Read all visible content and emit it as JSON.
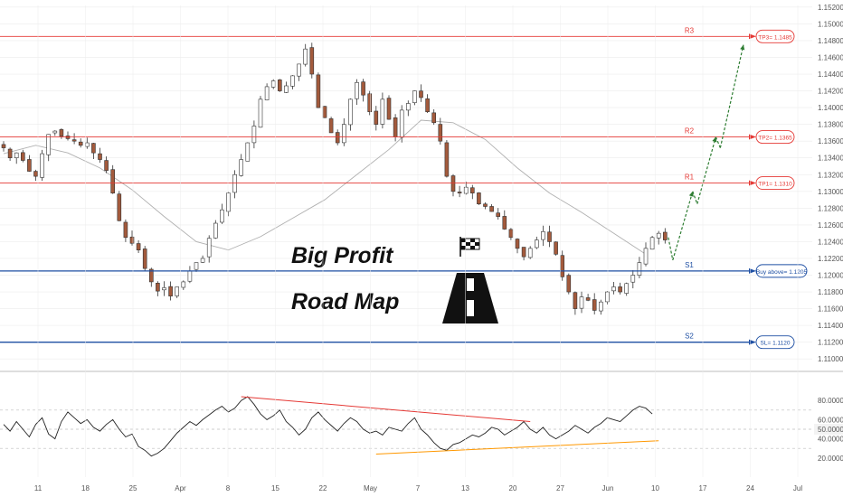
{
  "chart_data": [
    {
      "type": "candlestick",
      "instrument_hint": "price",
      "y_axis_ticks": [
        "1.15200",
        "1.15000",
        "1.14800",
        "1.14600",
        "1.14400",
        "1.14200",
        "1.14000",
        "1.13800",
        "1.13600",
        "1.13400",
        "1.13200",
        "1.13000",
        "1.12800",
        "1.12600",
        "1.12400",
        "1.12200",
        "1.12000",
        "1.11800",
        "1.11600",
        "1.11400",
        "1.11200",
        "1.11000"
      ],
      "ylim": [
        1.1097,
        1.1522
      ],
      "x_axis_ticks": [
        "11",
        "18",
        "25",
        "Apr",
        "8",
        "15",
        "22",
        "May",
        "7",
        "13",
        "20",
        "27",
        "Jun",
        "10",
        "17",
        "24",
        "Jul"
      ],
      "close_path": [
        [
          0,
          1.1352
        ],
        [
          1,
          1.134
        ],
        [
          2,
          1.1346
        ],
        [
          3,
          1.1337
        ],
        [
          4,
          1.1324
        ],
        [
          5,
          1.1318
        ],
        [
          6,
          1.1345
        ],
        [
          7,
          1.1368
        ],
        [
          8,
          1.1372
        ],
        [
          9,
          1.1366
        ],
        [
          10,
          1.1363
        ],
        [
          11,
          1.136
        ],
        [
          12,
          1.1355
        ],
        [
          13,
          1.1358
        ],
        [
          14,
          1.1346
        ],
        [
          15,
          1.1338
        ],
        [
          16,
          1.1325
        ],
        [
          17,
          1.1298
        ],
        [
          18,
          1.1265
        ],
        [
          19,
          1.1245
        ],
        [
          20,
          1.1238
        ],
        [
          21,
          1.123
        ],
        [
          22,
          1.1208
        ],
        [
          23,
          1.1192
        ],
        [
          24,
          1.1181
        ],
        [
          25,
          1.1185
        ],
        [
          26,
          1.1175
        ],
        [
          27,
          1.1186
        ],
        [
          28,
          1.1192
        ],
        [
          29,
          1.1205
        ],
        [
          30,
          1.1215
        ],
        [
          31,
          1.122
        ],
        [
          32,
          1.1244
        ],
        [
          33,
          1.1262
        ],
        [
          34,
          1.1278
        ],
        [
          35,
          1.1298
        ],
        [
          36,
          1.132
        ],
        [
          37,
          1.1338
        ],
        [
          38,
          1.1358
        ],
        [
          39,
          1.1378
        ],
        [
          40,
          1.141
        ],
        [
          41,
          1.1425
        ],
        [
          42,
          1.1432
        ],
        [
          43,
          1.142
        ],
        [
          44,
          1.1426
        ],
        [
          45,
          1.1438
        ],
        [
          46,
          1.1452
        ],
        [
          47,
          1.147
        ],
        [
          48,
          1.144
        ],
        [
          49,
          1.14
        ],
        [
          50,
          1.1388
        ],
        [
          51,
          1.137
        ],
        [
          52,
          1.1358
        ],
        [
          53,
          1.138
        ],
        [
          54,
          1.141
        ],
        [
          55,
          1.143
        ],
        [
          56,
          1.1415
        ],
        [
          57,
          1.1395
        ],
        [
          58,
          1.138
        ],
        [
          59,
          1.141
        ],
        [
          60,
          1.1386
        ],
        [
          61,
          1.1365
        ],
        [
          62,
          1.1397
        ],
        [
          63,
          1.1405
        ],
        [
          64,
          1.142
        ],
        [
          65,
          1.1412
        ],
        [
          66,
          1.1395
        ],
        [
          67,
          1.1382
        ],
        [
          68,
          1.136
        ],
        [
          69,
          1.1318
        ],
        [
          70,
          1.13
        ],
        [
          71,
          1.1298
        ],
        [
          72,
          1.1305
        ],
        [
          73,
          1.1298
        ],
        [
          74,
          1.1285
        ],
        [
          75,
          1.1282
        ],
        [
          76,
          1.1276
        ],
        [
          77,
          1.127
        ],
        [
          78,
          1.1255
        ],
        [
          79,
          1.1245
        ],
        [
          80,
          1.1232
        ],
        [
          81,
          1.1222
        ],
        [
          82,
          1.1232
        ],
        [
          83,
          1.1242
        ],
        [
          84,
          1.1252
        ],
        [
          85,
          1.124
        ],
        [
          86,
          1.1225
        ],
        [
          87,
          1.1198
        ],
        [
          88,
          1.118
        ],
        [
          89,
          1.116
        ],
        [
          90,
          1.1174
        ],
        [
          91,
          1.117
        ],
        [
          92,
          1.1158
        ],
        [
          93,
          1.1168
        ],
        [
          94,
          1.118
        ],
        [
          95,
          1.1186
        ],
        [
          96,
          1.118
        ],
        [
          97,
          1.119
        ],
        [
          98,
          1.12
        ],
        [
          99,
          1.1215
        ],
        [
          100,
          1.1232
        ],
        [
          101,
          1.1245
        ],
        [
          102,
          1.125
        ],
        [
          103,
          1.1242
        ]
      ],
      "moving_average_path": [
        [
          0,
          1.1345
        ],
        [
          5,
          1.1355
        ],
        [
          10,
          1.1346
        ],
        [
          15,
          1.1328
        ],
        [
          20,
          1.1302
        ],
        [
          25,
          1.127
        ],
        [
          30,
          1.124
        ],
        [
          35,
          1.123
        ],
        [
          40,
          1.1246
        ],
        [
          45,
          1.1268
        ],
        [
          50,
          1.129
        ],
        [
          55,
          1.132
        ],
        [
          60,
          1.135
        ],
        [
          65,
          1.1385
        ],
        [
          70,
          1.1382
        ],
        [
          75,
          1.1362
        ],
        [
          80,
          1.1328
        ],
        [
          85,
          1.1298
        ],
        [
          90,
          1.1275
        ],
        [
          95,
          1.125
        ],
        [
          100,
          1.1225
        ]
      ],
      "levels": [
        {
          "name": "R3",
          "tag": "TP3= 1.1485",
          "value": 1.1485,
          "color": "#e53935"
        },
        {
          "name": "R2",
          "tag": "TP2= 1.1365",
          "value": 1.1365,
          "color": "#e53935"
        },
        {
          "name": "R1",
          "tag": "TP1= 1.1310",
          "value": 1.131,
          "color": "#e53935"
        },
        {
          "name": "S1",
          "tag": "Buy above= 1.1205",
          "value": 1.1205,
          "color": "#1e4fa3"
        },
        {
          "name": "S2",
          "tag": "SL= 1.1120",
          "value": 1.112,
          "color": "#1e4fa3"
        }
      ],
      "projection_path": [
        [
          103.5,
          1.1245
        ],
        [
          104.2,
          1.1218
        ],
        [
          107.3,
          1.13
        ],
        [
          107.3,
          1.13
        ],
        [
          108,
          1.1285
        ],
        [
          110.9,
          1.1365
        ],
        [
          110.9,
          1.1365
        ],
        [
          111.6,
          1.1352
        ],
        [
          115.2,
          1.1475
        ]
      ],
      "annotation_title_line1": "Big Profit",
      "annotation_title_line2": "Road Map"
    },
    {
      "type": "line",
      "indicator": "oscillator",
      "y_axis_ticks": [
        "80.0000",
        "60.0000",
        "50.0000",
        "40.0000",
        "20.0000"
      ],
      "current_value": "50.0000",
      "ylim": [
        0,
        100
      ],
      "reference_lines": [
        70,
        50,
        30
      ],
      "series": [
        {
          "values": [
            55,
            48,
            58,
            50,
            42,
            55,
            62,
            45,
            40,
            58,
            68,
            62,
            56,
            60,
            52,
            48,
            55,
            60,
            50,
            42,
            45,
            32,
            28,
            22,
            25,
            30,
            38,
            46,
            52,
            58,
            54,
            60,
            65,
            70,
            74,
            68,
            72,
            80,
            84,
            76,
            66,
            60,
            64,
            70,
            58,
            52,
            44,
            50,
            62,
            68,
            60,
            54,
            48,
            56,
            62,
            58,
            50,
            46,
            48,
            44,
            52,
            50,
            48,
            56,
            62,
            50,
            44,
            36,
            30,
            28,
            34,
            36,
            40,
            44,
            42,
            46,
            52,
            50,
            44,
            48,
            52,
            58,
            50,
            46,
            52,
            44,
            40,
            44,
            48,
            54,
            50,
            46,
            52,
            56,
            62,
            60,
            58,
            64,
            70,
            74,
            72,
            66
          ]
        }
      ],
      "trendlines": [
        {
          "from": [
            37,
            84
          ],
          "to": [
            82,
            58
          ],
          "color": "#e53935"
        },
        {
          "from": [
            58,
            24
          ],
          "to": [
            102,
            38
          ],
          "color": "#ff9800"
        }
      ]
    }
  ],
  "colors": {
    "bull": "#26272b",
    "bear": "#a35a3c",
    "grid": "#ececec",
    "axis_text": "#555555",
    "projection": "#2e7d32",
    "ma": "#b0b0b0",
    "current_tag": "#f3f3f3"
  }
}
